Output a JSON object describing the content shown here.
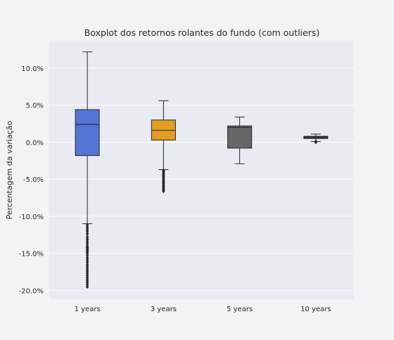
{
  "chart_data": {
    "type": "box",
    "title": "Boxplot dos retornos rolantes do fundo (com outliers)",
    "xlabel": "",
    "ylabel": "Percentagem da variação",
    "ylim": [
      -0.212,
      0.137
    ],
    "yticks": [
      0.1,
      0.05,
      0.0,
      -0.05,
      -0.1,
      -0.15,
      -0.2
    ],
    "ytick_labels": [
      "10.0%",
      "5.0%",
      "0.0%",
      "-5.0%",
      "-10.0%",
      "-15.0%",
      "-20.0%"
    ],
    "grid": true,
    "categories": [
      "1 years",
      "3 years",
      "5 years",
      "10 years"
    ],
    "boxes": [
      {
        "category": "1 years",
        "color": "#5274d4",
        "whisker_low": -0.11,
        "q1": -0.018,
        "median": 0.024,
        "q3": 0.044,
        "whisker_high": 0.122,
        "outliers": [
          -0.112,
          -0.115,
          -0.118,
          -0.121,
          -0.124,
          -0.128,
          -0.131,
          -0.134,
          -0.137,
          -0.14,
          -0.142,
          -0.144,
          -0.146,
          -0.148,
          -0.15,
          -0.153,
          -0.156,
          -0.159,
          -0.162,
          -0.165,
          -0.168,
          -0.171,
          -0.174,
          -0.177,
          -0.18,
          -0.183,
          -0.186,
          -0.189,
          -0.192,
          -0.195
        ]
      },
      {
        "category": "3 years",
        "color": "#e29e23",
        "whisker_low": -0.037,
        "q1": 0.003,
        "median": 0.016,
        "q3": 0.03,
        "whisker_high": 0.056,
        "outliers": [
          -0.038,
          -0.04,
          -0.042,
          -0.044,
          -0.046,
          -0.048,
          -0.05,
          -0.052,
          -0.054,
          -0.056,
          -0.058,
          -0.06,
          -0.062,
          -0.064,
          -0.066
        ]
      },
      {
        "category": "5 years",
        "color": "#676767",
        "whisker_low": -0.029,
        "q1": -0.008,
        "median": 0.02,
        "q3": 0.022,
        "whisker_high": 0.034,
        "outliers": []
      },
      {
        "category": "10 years",
        "color": "#3d3a6b",
        "whisker_low": 0.001,
        "q1": 0.005,
        "median": 0.007,
        "q3": 0.008,
        "whisker_high": 0.011,
        "outliers": [
          0.0,
          0.001
        ]
      }
    ]
  }
}
